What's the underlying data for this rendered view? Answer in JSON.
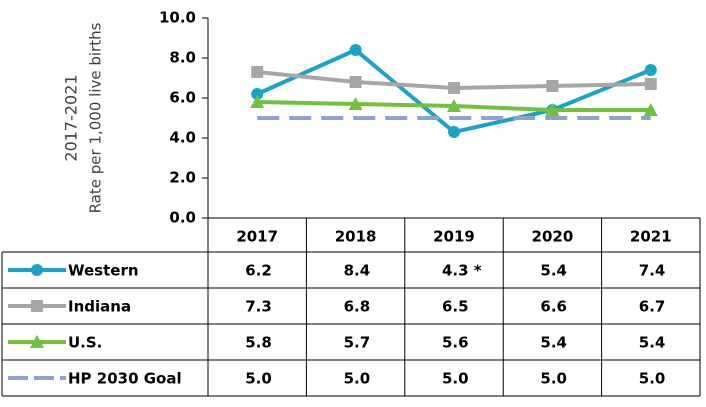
{
  "chart_data": {
    "type": "line",
    "y_label": [
      "2017-2021",
      "Rate per 1,000 live births"
    ],
    "categories": [
      "2017",
      "2018",
      "2019",
      "2020",
      "2021"
    ],
    "ylim": [
      0,
      10
    ],
    "yticks": [
      {
        "value": 0,
        "label": "0.0"
      },
      {
        "value": 2,
        "label": "2.0"
      },
      {
        "value": 4,
        "label": "4.0"
      },
      {
        "value": 6,
        "label": "6.0"
      },
      {
        "value": 8,
        "label": "8.0"
      },
      {
        "value": 10,
        "label": "10.0"
      }
    ],
    "series": [
      {
        "name": "Western",
        "color": "#1aa3c8",
        "marker": "circle",
        "values": [
          6.2,
          8.4,
          4.3,
          5.4,
          7.4
        ],
        "value_labels": [
          "6.2",
          "8.4",
          "4.3 *",
          "5.4",
          "7.4"
        ]
      },
      {
        "name": "Indiana",
        "color": "#a6a6a6",
        "marker": "square",
        "values": [
          7.3,
          6.8,
          6.5,
          6.6,
          6.7
        ],
        "value_labels": [
          "7.3",
          "6.8",
          "6.5",
          "6.6",
          "6.7"
        ]
      },
      {
        "name": "U.S.",
        "color": "#72c03c",
        "marker": "triangle",
        "values": [
          5.8,
          5.7,
          5.6,
          5.4,
          5.4
        ],
        "value_labels": [
          "5.8",
          "5.7",
          "5.6",
          "5.4",
          "5.4"
        ]
      },
      {
        "name": "HP 2030 Goal",
        "color": "#8fa0d2",
        "marker": "none",
        "dashed": true,
        "values": [
          5.0,
          5.0,
          5.0,
          5.0,
          5.0
        ],
        "value_labels": [
          "5.0",
          "5.0",
          "5.0",
          "5.0",
          "5.0"
        ]
      }
    ]
  }
}
